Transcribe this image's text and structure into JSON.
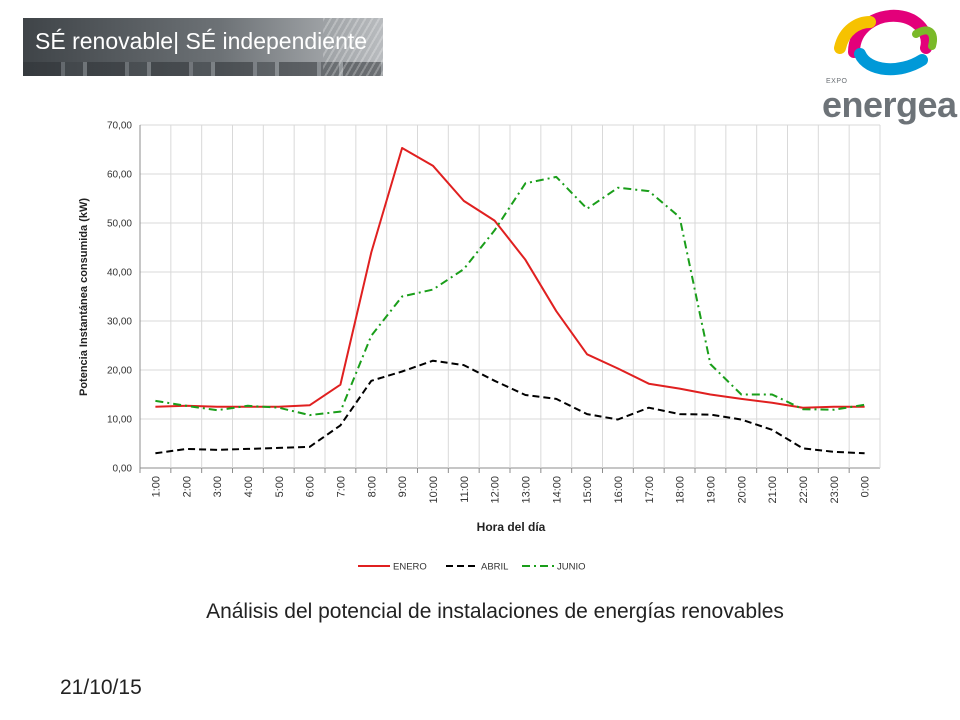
{
  "header": {
    "banner_text": "SÉ renovable| SÉ independiente",
    "logo_small": "EXPO",
    "logo_word": "energea",
    "logo_colors": [
      "#f6c200",
      "#e3007a",
      "#0099d8",
      "#7ab929"
    ]
  },
  "chart_data": {
    "type": "line",
    "xlabel": "Hora del día",
    "ylabel": "Potencia Instantánea consumida (kW)",
    "categories": [
      "1:00",
      "2:00",
      "3:00",
      "4:00",
      "5:00",
      "6:00",
      "7:00",
      "8:00",
      "9:00",
      "10:00",
      "11:00",
      "12:00",
      "13:00",
      "14:00",
      "15:00",
      "16:00",
      "17:00",
      "18:00",
      "19:00",
      "20:00",
      "21:00",
      "22:00",
      "23:00",
      "0:00"
    ],
    "ylim": [
      0,
      70
    ],
    "yticks": [
      "0,00",
      "10,00",
      "20,00",
      "30,00",
      "40,00",
      "50,00",
      "60,00",
      "70,00"
    ],
    "grid": true,
    "legend_position": "bottom",
    "series": [
      {
        "name": "ENERO",
        "color": "#e02020",
        "dash": "solid",
        "values": [
          12.5,
          12.7,
          12.5,
          12.5,
          12.5,
          12.8,
          17.0,
          44.0,
          65.3,
          61.7,
          54.5,
          50.5,
          42.5,
          32.0,
          23.2,
          20.3,
          17.2,
          16.2,
          15.0,
          14.1,
          13.3,
          12.3,
          12.5,
          12.5
        ]
      },
      {
        "name": "ABRIL",
        "color": "#000000",
        "dash": "dash",
        "values": [
          3.0,
          3.9,
          3.7,
          3.9,
          4.1,
          4.3,
          8.7,
          17.8,
          19.7,
          21.9,
          21.0,
          17.8,
          14.9,
          14.1,
          11.0,
          9.9,
          12.3,
          11.0,
          10.9,
          9.9,
          7.8,
          4.0,
          3.3,
          3.0
        ]
      },
      {
        "name": "JUNIO",
        "color": "#1a9e1a",
        "dash": "dashdot",
        "values": [
          13.7,
          12.7,
          11.8,
          12.7,
          12.3,
          10.8,
          11.5,
          27.0,
          35.0,
          36.4,
          40.6,
          48.5,
          58.1,
          59.4,
          52.9,
          57.2,
          56.5,
          51.2,
          21.2,
          15.0,
          15.0,
          12.0,
          11.9,
          12.9
        ]
      }
    ]
  },
  "caption": "Análisis del potencial de instalaciones de energías renovables",
  "date": "21/10/15"
}
